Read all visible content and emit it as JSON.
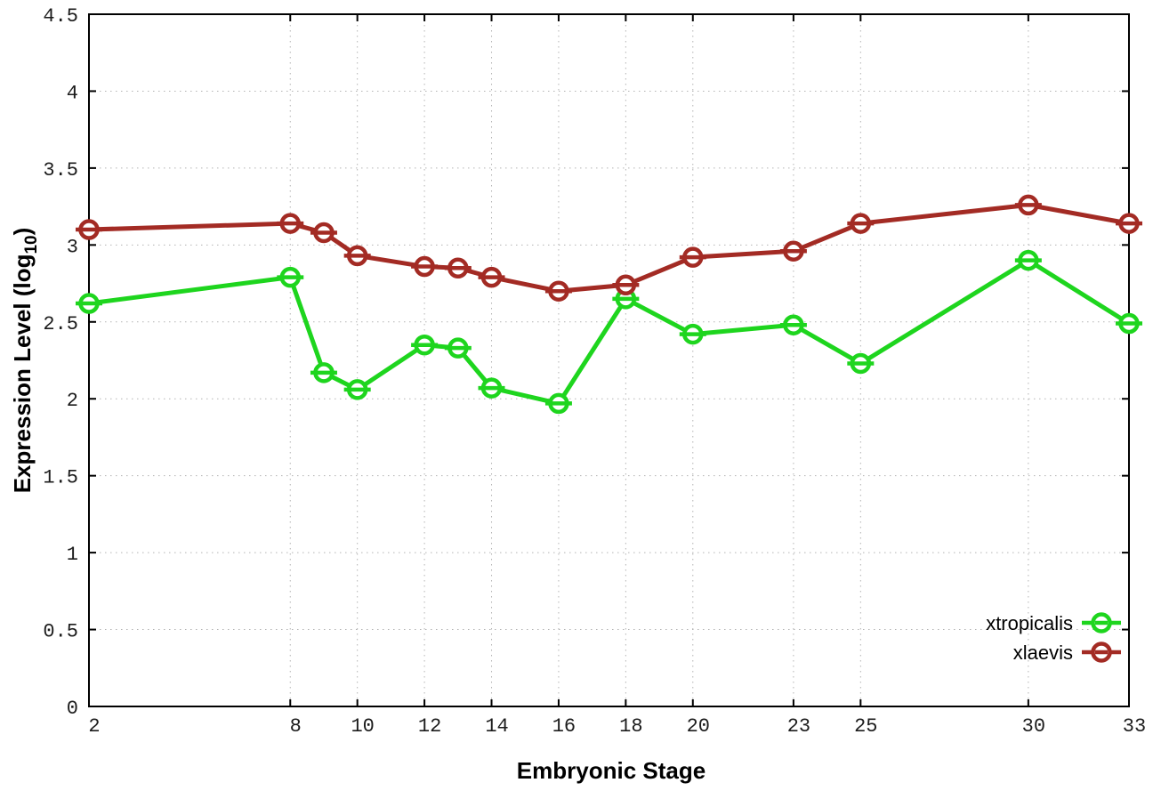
{
  "figure": {
    "background": "#ffffff",
    "ylabel_prefix": "Expression Level (log",
    "ylabel_sub": "10",
    "ylabel_suffix": ")"
  },
  "chart_data": {
    "type": "line",
    "title": "",
    "xlabel": "Embryonic Stage",
    "ylabel": "Expression Level (log10)",
    "x": [
      2,
      8,
      9,
      10,
      12,
      13,
      14,
      16,
      18,
      20,
      23,
      25,
      30,
      33
    ],
    "series": [
      {
        "name": "xtropicalis",
        "color": "#1ed51e",
        "values": [
          2.62,
          2.79,
          2.17,
          2.06,
          2.35,
          2.33,
          2.07,
          1.97,
          2.65,
          2.42,
          2.48,
          2.23,
          2.9,
          2.49
        ]
      },
      {
        "name": "xlaevis",
        "color": "#a32b24",
        "values": [
          3.1,
          3.14,
          3.08,
          2.93,
          2.86,
          2.85,
          2.79,
          2.7,
          2.74,
          2.92,
          2.96,
          3.14,
          3.26,
          3.14
        ]
      }
    ],
    "xticks": [
      2,
      8,
      10,
      12,
      14,
      16,
      18,
      20,
      23,
      25,
      30,
      33
    ],
    "yticks": [
      0,
      0.5,
      1,
      1.5,
      2,
      2.5,
      3,
      3.5,
      4,
      4.5
    ],
    "xlim": [
      2,
      33
    ],
    "ylim": [
      0,
      4.5
    ],
    "grid": true,
    "grid_style": "dotted",
    "grid_color": "#b3b3b3",
    "border_color": "#000000",
    "marker": "open-circle-with-errorbar-cap",
    "legend_position": "bottom-right"
  }
}
